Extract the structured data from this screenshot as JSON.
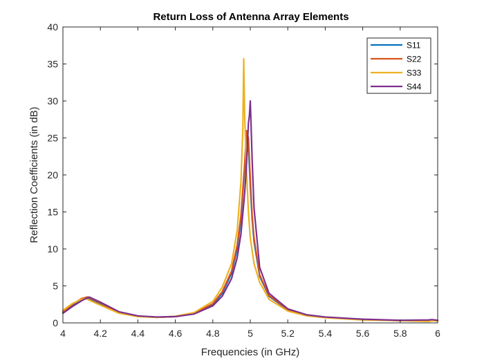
{
  "chart_data": {
    "type": "line",
    "title": "Return Loss of Antenna Array Elements",
    "xlabel": "Frequencies (in GHz)",
    "ylabel": "Reflection Coefficients (in dB)",
    "xlim": [
      4,
      6
    ],
    "ylim": [
      0,
      40
    ],
    "xticks": [
      4,
      4.2,
      4.4,
      4.6,
      4.8,
      5,
      5.2,
      5.4,
      5.6,
      5.8,
      6
    ],
    "xtick_labels": [
      "4",
      "4.2",
      "4.4",
      "4.6",
      "4.8",
      "5",
      "5.2",
      "5.4",
      "5.6",
      "5.8",
      "6"
    ],
    "yticks": [
      0,
      5,
      10,
      15,
      20,
      25,
      30,
      35,
      40
    ],
    "ytick_labels": [
      "0",
      "5",
      "10",
      "15",
      "20",
      "25",
      "30",
      "35",
      "40"
    ],
    "grid": false,
    "legend_position": "top-right",
    "series": [
      {
        "name": "S11",
        "color": "#0072BD",
        "x": [
          4.0,
          4.05,
          4.1,
          4.13,
          4.2,
          4.3,
          4.4,
          4.5,
          4.6,
          4.7,
          4.8,
          4.85,
          4.9,
          4.93,
          4.95,
          4.97,
          4.98,
          4.99,
          5.0,
          5.01,
          5.02,
          5.05,
          5.1,
          5.2,
          5.3,
          5.4,
          5.6,
          5.8,
          5.95,
          5.97,
          6.0
        ],
        "y": [
          1.4,
          2.3,
          3.1,
          3.4,
          2.6,
          1.4,
          0.9,
          0.75,
          0.85,
          1.25,
          2.5,
          4.0,
          6.7,
          10.0,
          14.0,
          21.0,
          25.5,
          24.0,
          18.5,
          14.0,
          11.0,
          6.3,
          3.6,
          1.75,
          1.05,
          0.75,
          0.45,
          0.3,
          0.25,
          0.35,
          0.3
        ]
      },
      {
        "name": "S22",
        "color": "#D95319",
        "x": [
          4.0,
          4.05,
          4.1,
          4.13,
          4.2,
          4.3,
          4.4,
          4.5,
          4.6,
          4.7,
          4.8,
          4.85,
          4.9,
          4.93,
          4.95,
          4.97,
          4.98,
          4.99,
          5.0,
          5.01,
          5.02,
          5.05,
          5.1,
          5.2,
          5.3,
          5.4,
          5.6,
          5.8,
          5.95,
          5.97,
          6.0
        ],
        "y": [
          1.5,
          2.5,
          3.3,
          3.5,
          2.7,
          1.4,
          0.9,
          0.75,
          0.85,
          1.3,
          2.6,
          4.2,
          7.0,
          10.5,
          14.5,
          21.5,
          26.0,
          25.0,
          19.5,
          14.5,
          11.5,
          6.5,
          3.7,
          1.8,
          1.05,
          0.75,
          0.45,
          0.3,
          0.25,
          0.4,
          0.35
        ]
      },
      {
        "name": "S33",
        "color": "#EDB120",
        "x": [
          4.0,
          4.05,
          4.1,
          4.12,
          4.2,
          4.3,
          4.4,
          4.5,
          4.6,
          4.7,
          4.8,
          4.85,
          4.9,
          4.93,
          4.95,
          4.96,
          4.965,
          4.97,
          4.98,
          4.99,
          5.0,
          5.02,
          5.05,
          5.1,
          5.2,
          5.3,
          5.4,
          5.6,
          5.8,
          5.95,
          5.97,
          6.0
        ],
        "y": [
          1.7,
          2.6,
          3.2,
          3.3,
          2.4,
          1.3,
          0.85,
          0.75,
          0.9,
          1.4,
          2.9,
          4.8,
          8.0,
          12.5,
          19.0,
          26.0,
          35.7,
          28.0,
          20.5,
          15.0,
          11.5,
          8.0,
          5.5,
          3.2,
          1.6,
          0.95,
          0.7,
          0.4,
          0.3,
          0.2,
          0.3,
          0.25
        ]
      },
      {
        "name": "S44",
        "color": "#7E2F8E",
        "x": [
          4.0,
          4.05,
          4.1,
          4.14,
          4.2,
          4.3,
          4.4,
          4.5,
          4.6,
          4.7,
          4.8,
          4.85,
          4.9,
          4.93,
          4.95,
          4.97,
          4.98,
          4.99,
          4.995,
          5.0,
          5.01,
          5.02,
          5.05,
          5.1,
          5.2,
          5.3,
          5.4,
          5.6,
          5.8,
          5.95,
          5.97,
          6.0
        ],
        "y": [
          1.3,
          2.2,
          3.0,
          3.5,
          2.8,
          1.5,
          0.95,
          0.8,
          0.85,
          1.2,
          2.3,
          3.6,
          6.0,
          8.8,
          12.0,
          17.5,
          21.5,
          27.0,
          28.0,
          30.0,
          22.0,
          15.5,
          7.5,
          4.0,
          1.9,
          1.1,
          0.8,
          0.5,
          0.35,
          0.4,
          0.45,
          0.35
        ]
      }
    ]
  }
}
